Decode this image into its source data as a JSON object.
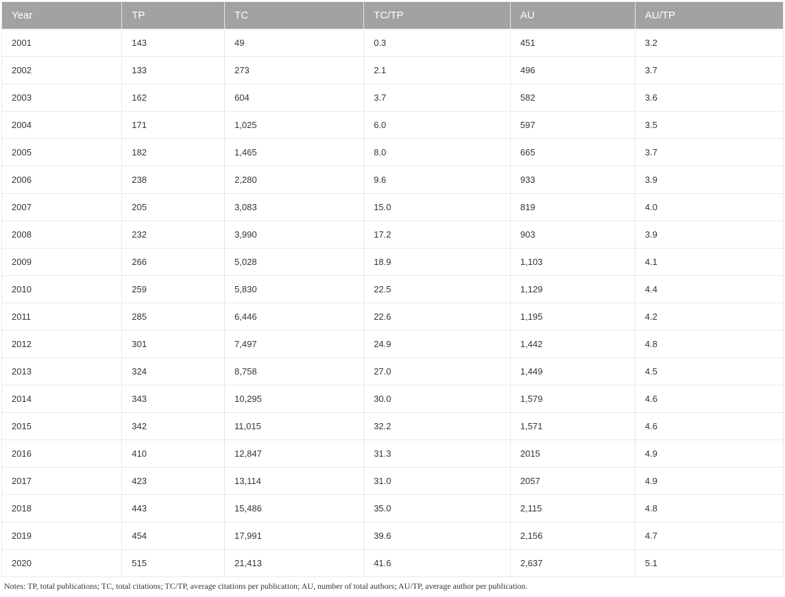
{
  "table": {
    "columns": [
      "Year",
      "TP",
      "TC",
      "TC/TP",
      "AU",
      "AU/TP"
    ],
    "column_widths": [
      "16.6%",
      "16.6%",
      "16.6%",
      "16.6%",
      "16.6%",
      "16.6%"
    ],
    "header_bg": "#a2a2a2",
    "header_color": "#ffffff",
    "header_fontsize": 15,
    "cell_fontsize": 13,
    "cell_color": "#333333",
    "border_color": "#e8e8e8",
    "row_bg": "#ffffff",
    "rows": [
      [
        "2001",
        "143",
        "49",
        "0.3",
        "451",
        "3.2"
      ],
      [
        "2002",
        "133",
        "273",
        "2.1",
        "496",
        "3.7"
      ],
      [
        "2003",
        "162",
        "604",
        "3.7",
        "582",
        "3.6"
      ],
      [
        "2004",
        "171",
        "1,025",
        "6.0",
        "597",
        "3.5"
      ],
      [
        "2005",
        "182",
        "1,465",
        "8.0",
        "665",
        "3.7"
      ],
      [
        "2006",
        "238",
        "2,280",
        "9.6",
        "933",
        "3.9"
      ],
      [
        "2007",
        "205",
        "3,083",
        "15.0",
        "819",
        "4.0"
      ],
      [
        "2008",
        "232",
        "3,990",
        "17.2",
        "903",
        "3.9"
      ],
      [
        "2009",
        "266",
        "5,028",
        "18.9",
        "1,103",
        "4.1"
      ],
      [
        "2010",
        "259",
        "5,830",
        "22.5",
        "1,129",
        "4.4"
      ],
      [
        "2011",
        "285",
        "6,446",
        "22.6",
        "1,195",
        "4.2"
      ],
      [
        "2012",
        "301",
        "7,497",
        "24.9",
        "1,442",
        "4.8"
      ],
      [
        "2013",
        "324",
        "8,758",
        "27.0",
        "1,449",
        "4.5"
      ],
      [
        "2014",
        "343",
        "10,295",
        "30.0",
        "1,579",
        "4.6"
      ],
      [
        "2015",
        "342",
        "11,015",
        "32.2",
        "1,571",
        "4.6"
      ],
      [
        "2016",
        "410",
        "12,847",
        "31.3",
        "2015",
        "4.9"
      ],
      [
        "2017",
        "423",
        "13,114",
        "31.0",
        "2057",
        "4.9"
      ],
      [
        "2018",
        "443",
        "15,486",
        "35.0",
        "2,115",
        "4.8"
      ],
      [
        "2019",
        "454",
        "17,991",
        "39.6",
        "2,156",
        "4.7"
      ],
      [
        "2020",
        "515",
        "21,413",
        "41.6",
        "2,637",
        "5.1"
      ]
    ]
  },
  "notes": "Notes: TP, total publications; TC, total citations; TC/TP, average citations per publication; AU, number of total authors; AU/TP, average author per publication."
}
